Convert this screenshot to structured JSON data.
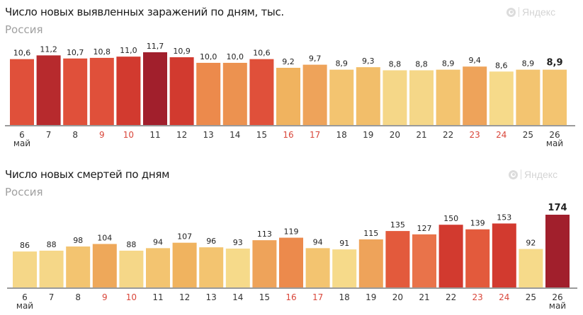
{
  "brand": {
    "logo_text": "Яндекс",
    "logo_icon": "yandex-target-icon"
  },
  "chart_data": [
    {
      "type": "bar",
      "title": "Число новых выявленных заражений по дням, тыс.",
      "subtitle": "Россия",
      "xlabel": "",
      "ylabel": "",
      "month_label": "май",
      "categories": [
        "6",
        "7",
        "8",
        "9",
        "10",
        "11",
        "12",
        "13",
        "14",
        "15",
        "16",
        "17",
        "18",
        "19",
        "20",
        "21",
        "22",
        "23",
        "24",
        "25",
        "26"
      ],
      "weekend": [
        false,
        false,
        false,
        true,
        true,
        false,
        false,
        false,
        false,
        false,
        true,
        true,
        false,
        false,
        false,
        false,
        false,
        true,
        true,
        false,
        false
      ],
      "values": [
        10.6,
        11.2,
        10.7,
        10.8,
        11.0,
        11.7,
        10.9,
        10.0,
        10.0,
        10.6,
        9.2,
        9.7,
        8.9,
        9.3,
        8.8,
        8.8,
        8.9,
        9.4,
        8.6,
        8.9,
        8.9
      ],
      "value_labels": [
        "10,6",
        "11,2",
        "10,7",
        "10,8",
        "11,0",
        "11,7",
        "10,9",
        "10,0",
        "10,0",
        "10,6",
        "9,2",
        "9,7",
        "8,9",
        "9,3",
        "8,8",
        "8,8",
        "8,9",
        "9,4",
        "8,6",
        "8,9",
        "8,9"
      ],
      "colors": [
        "#e0503a",
        "#b72a2d",
        "#e0503a",
        "#e0503a",
        "#d23a2f",
        "#a11f2c",
        "#d23a2f",
        "#ec8a4c",
        "#ec9250",
        "#e0503a",
        "#f0b35f",
        "#eea35a",
        "#f3c470",
        "#f2be6a",
        "#f5d788",
        "#f5d788",
        "#f3c470",
        "#eea35a",
        "#f6da8a",
        "#f3c470",
        "#f3c470"
      ],
      "highlight_last": true,
      "ylim": [
        0,
        11.7
      ]
    },
    {
      "type": "bar",
      "title": "Число новых смертей по дням",
      "subtitle": "Россия",
      "xlabel": "",
      "ylabel": "",
      "month_label": "май",
      "categories": [
        "6",
        "7",
        "8",
        "9",
        "10",
        "11",
        "12",
        "13",
        "14",
        "15",
        "16",
        "17",
        "18",
        "19",
        "20",
        "21",
        "22",
        "23",
        "24",
        "25",
        "26"
      ],
      "weekend": [
        false,
        false,
        false,
        true,
        true,
        false,
        false,
        false,
        false,
        false,
        true,
        true,
        false,
        false,
        false,
        false,
        false,
        true,
        true,
        false,
        false
      ],
      "values": [
        86,
        88,
        98,
        104,
        88,
        94,
        107,
        96,
        93,
        113,
        119,
        94,
        91,
        115,
        135,
        127,
        150,
        139,
        153,
        92,
        174
      ],
      "value_labels": [
        "86",
        "88",
        "98",
        "104",
        "88",
        "94",
        "107",
        "96",
        "93",
        "113",
        "119",
        "94",
        "91",
        "115",
        "135",
        "127",
        "150",
        "139",
        "153",
        "92",
        "174"
      ],
      "colors": [
        "#f5d788",
        "#f5d788",
        "#f3c470",
        "#eea85a",
        "#f5d788",
        "#f3c470",
        "#f0b35f",
        "#f3c470",
        "#f6da8a",
        "#eea35a",
        "#ec8a4c",
        "#f3c470",
        "#f6da8a",
        "#eea35a",
        "#e35a3c",
        "#e9734a",
        "#d23a2f",
        "#e35a3c",
        "#d23a2f",
        "#f6da8a",
        "#a11f2c"
      ],
      "highlight_last": true,
      "ylim": [
        0,
        174
      ]
    }
  ],
  "colors": {
    "weekend_tick": "#d9463a",
    "tick": "#333333",
    "axis": "#9a9a9a"
  }
}
